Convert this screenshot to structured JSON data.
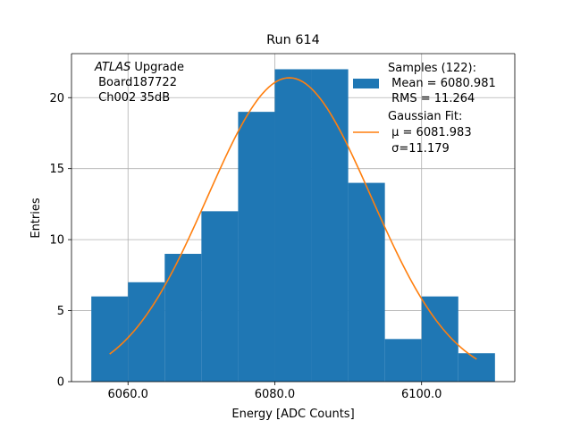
{
  "chart_data": {
    "type": "bar",
    "title": "Run 614",
    "xlabel": "Energy [ADC Counts]",
    "ylabel": "Entries",
    "xlim": [
      6052.3,
      6112.7
    ],
    "ylim": [
      0,
      23.1
    ],
    "xticks": [
      6060,
      6080,
      6100
    ],
    "xtick_labels": [
      "6060.0",
      "6080.0",
      "6100.0"
    ],
    "yticks": [
      0,
      5,
      10,
      15,
      20
    ],
    "ytick_labels": [
      "0",
      "5",
      "10",
      "15",
      "20"
    ],
    "grid": true,
    "histogram": {
      "name": "Samples",
      "color": "#1f77b4",
      "bin_edges": [
        6055,
        6060,
        6065,
        6070,
        6075,
        6080,
        6085,
        6090,
        6095,
        6100,
        6105,
        6110
      ],
      "counts": [
        6,
        7,
        9,
        12,
        19,
        22,
        22,
        14,
        3,
        6,
        2
      ]
    },
    "fit": {
      "name": "Gaussian Fit",
      "color": "#ff7f0e",
      "mu": 6081.983,
      "sigma": 11.179,
      "amplitude": 21.4,
      "x_range": [
        6057.5,
        6107.5
      ]
    },
    "legend": {
      "placement": "top-right",
      "entries": [
        {
          "label_lines": [
            "Samples (122):",
            " Mean = 6080.981",
            " RMS = 11.264"
          ]
        },
        {
          "label_lines": [
            "Gaussian Fit:",
            " μ = 6081.983",
            " σ=11.179"
          ]
        }
      ]
    },
    "annotation": {
      "italic": "ATLAS",
      "rest": " Upgrade",
      "lines": [
        " Board187722",
        " Ch002 35dB"
      ]
    }
  }
}
